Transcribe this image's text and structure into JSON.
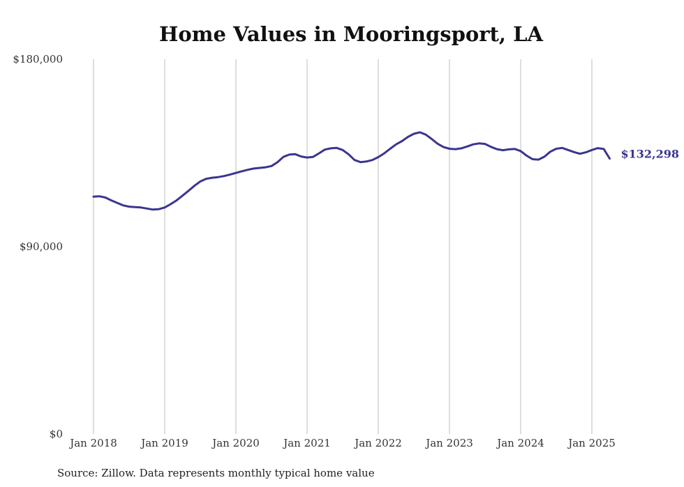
{
  "chart_data": {
    "type": "line",
    "title": "Home Values in Mooringsport, LA",
    "source": "Source: Zillow. Data represents monthly typical home value",
    "x_tick_labels": [
      "Jan 2018",
      "Jan 2019",
      "Jan 2020",
      "Jan 2021",
      "Jan 2022",
      "Jan 2023",
      "Jan 2024",
      "Jan 2025"
    ],
    "y_tick_labels": [
      "$0",
      "$90,000",
      "$180,000"
    ],
    "y_ticks": [
      0,
      90000,
      180000
    ],
    "ylim": [
      0,
      180000
    ],
    "xlim": [
      "2018-01",
      "2025-04"
    ],
    "grid": "vertical",
    "line_color": "#3a3590",
    "end_label": "$132,298",
    "series": [
      {
        "x": [
          "2018-01",
          "2018-02",
          "2018-03",
          "2018-04",
          "2018-05",
          "2018-06",
          "2018-07",
          "2018-08",
          "2018-09",
          "2018-10",
          "2018-11",
          "2018-12",
          "2019-01",
          "2019-02",
          "2019-03",
          "2019-04",
          "2019-05",
          "2019-06",
          "2019-07",
          "2019-08",
          "2019-09",
          "2019-10",
          "2019-11",
          "2019-12",
          "2020-01",
          "2020-02",
          "2020-03",
          "2020-04",
          "2020-05",
          "2020-06",
          "2020-07",
          "2020-08",
          "2020-09",
          "2020-10",
          "2020-11",
          "2020-12",
          "2021-01",
          "2021-02",
          "2021-03",
          "2021-04",
          "2021-05",
          "2021-06",
          "2021-07",
          "2021-08",
          "2021-09",
          "2021-10",
          "2021-11",
          "2021-12",
          "2022-01",
          "2022-02",
          "2022-03",
          "2022-04",
          "2022-05",
          "2022-06",
          "2022-07",
          "2022-08",
          "2022-09",
          "2022-10",
          "2022-11",
          "2022-12",
          "2023-01",
          "2023-02",
          "2023-03",
          "2023-04",
          "2023-05",
          "2023-06",
          "2023-07",
          "2023-08",
          "2023-09",
          "2023-10",
          "2023-11",
          "2023-12",
          "2024-01",
          "2024-02",
          "2024-03",
          "2024-04",
          "2024-05",
          "2024-06",
          "2024-07",
          "2024-08",
          "2024-09",
          "2024-10",
          "2024-11",
          "2024-12",
          "2025-01",
          "2025-02",
          "2025-03",
          "2025-04"
        ],
        "values": [
          114000,
          114200,
          113600,
          112200,
          111000,
          109800,
          109200,
          109000,
          108800,
          108300,
          107800,
          108000,
          108800,
          110400,
          112200,
          114500,
          116800,
          119200,
          121300,
          122600,
          123100,
          123400,
          123900,
          124600,
          125400,
          126200,
          126900,
          127500,
          127800,
          128100,
          128700,
          130500,
          133100,
          134200,
          134400,
          133300,
          132800,
          133100,
          134800,
          136600,
          137200,
          137400,
          136400,
          134300,
          131600,
          130600,
          130900,
          131600,
          133000,
          134800,
          137000,
          139100,
          140700,
          142700,
          144200,
          144900,
          143800,
          141700,
          139400,
          137800,
          137000,
          136800,
          137200,
          138100,
          139100,
          139600,
          139300,
          137900,
          136800,
          136300,
          136700,
          136900,
          135900,
          133700,
          132000,
          131800,
          133200,
          135600,
          137000,
          137400,
          136400,
          135400,
          134600,
          135300,
          136400,
          137300,
          136900,
          132298
        ]
      }
    ]
  }
}
